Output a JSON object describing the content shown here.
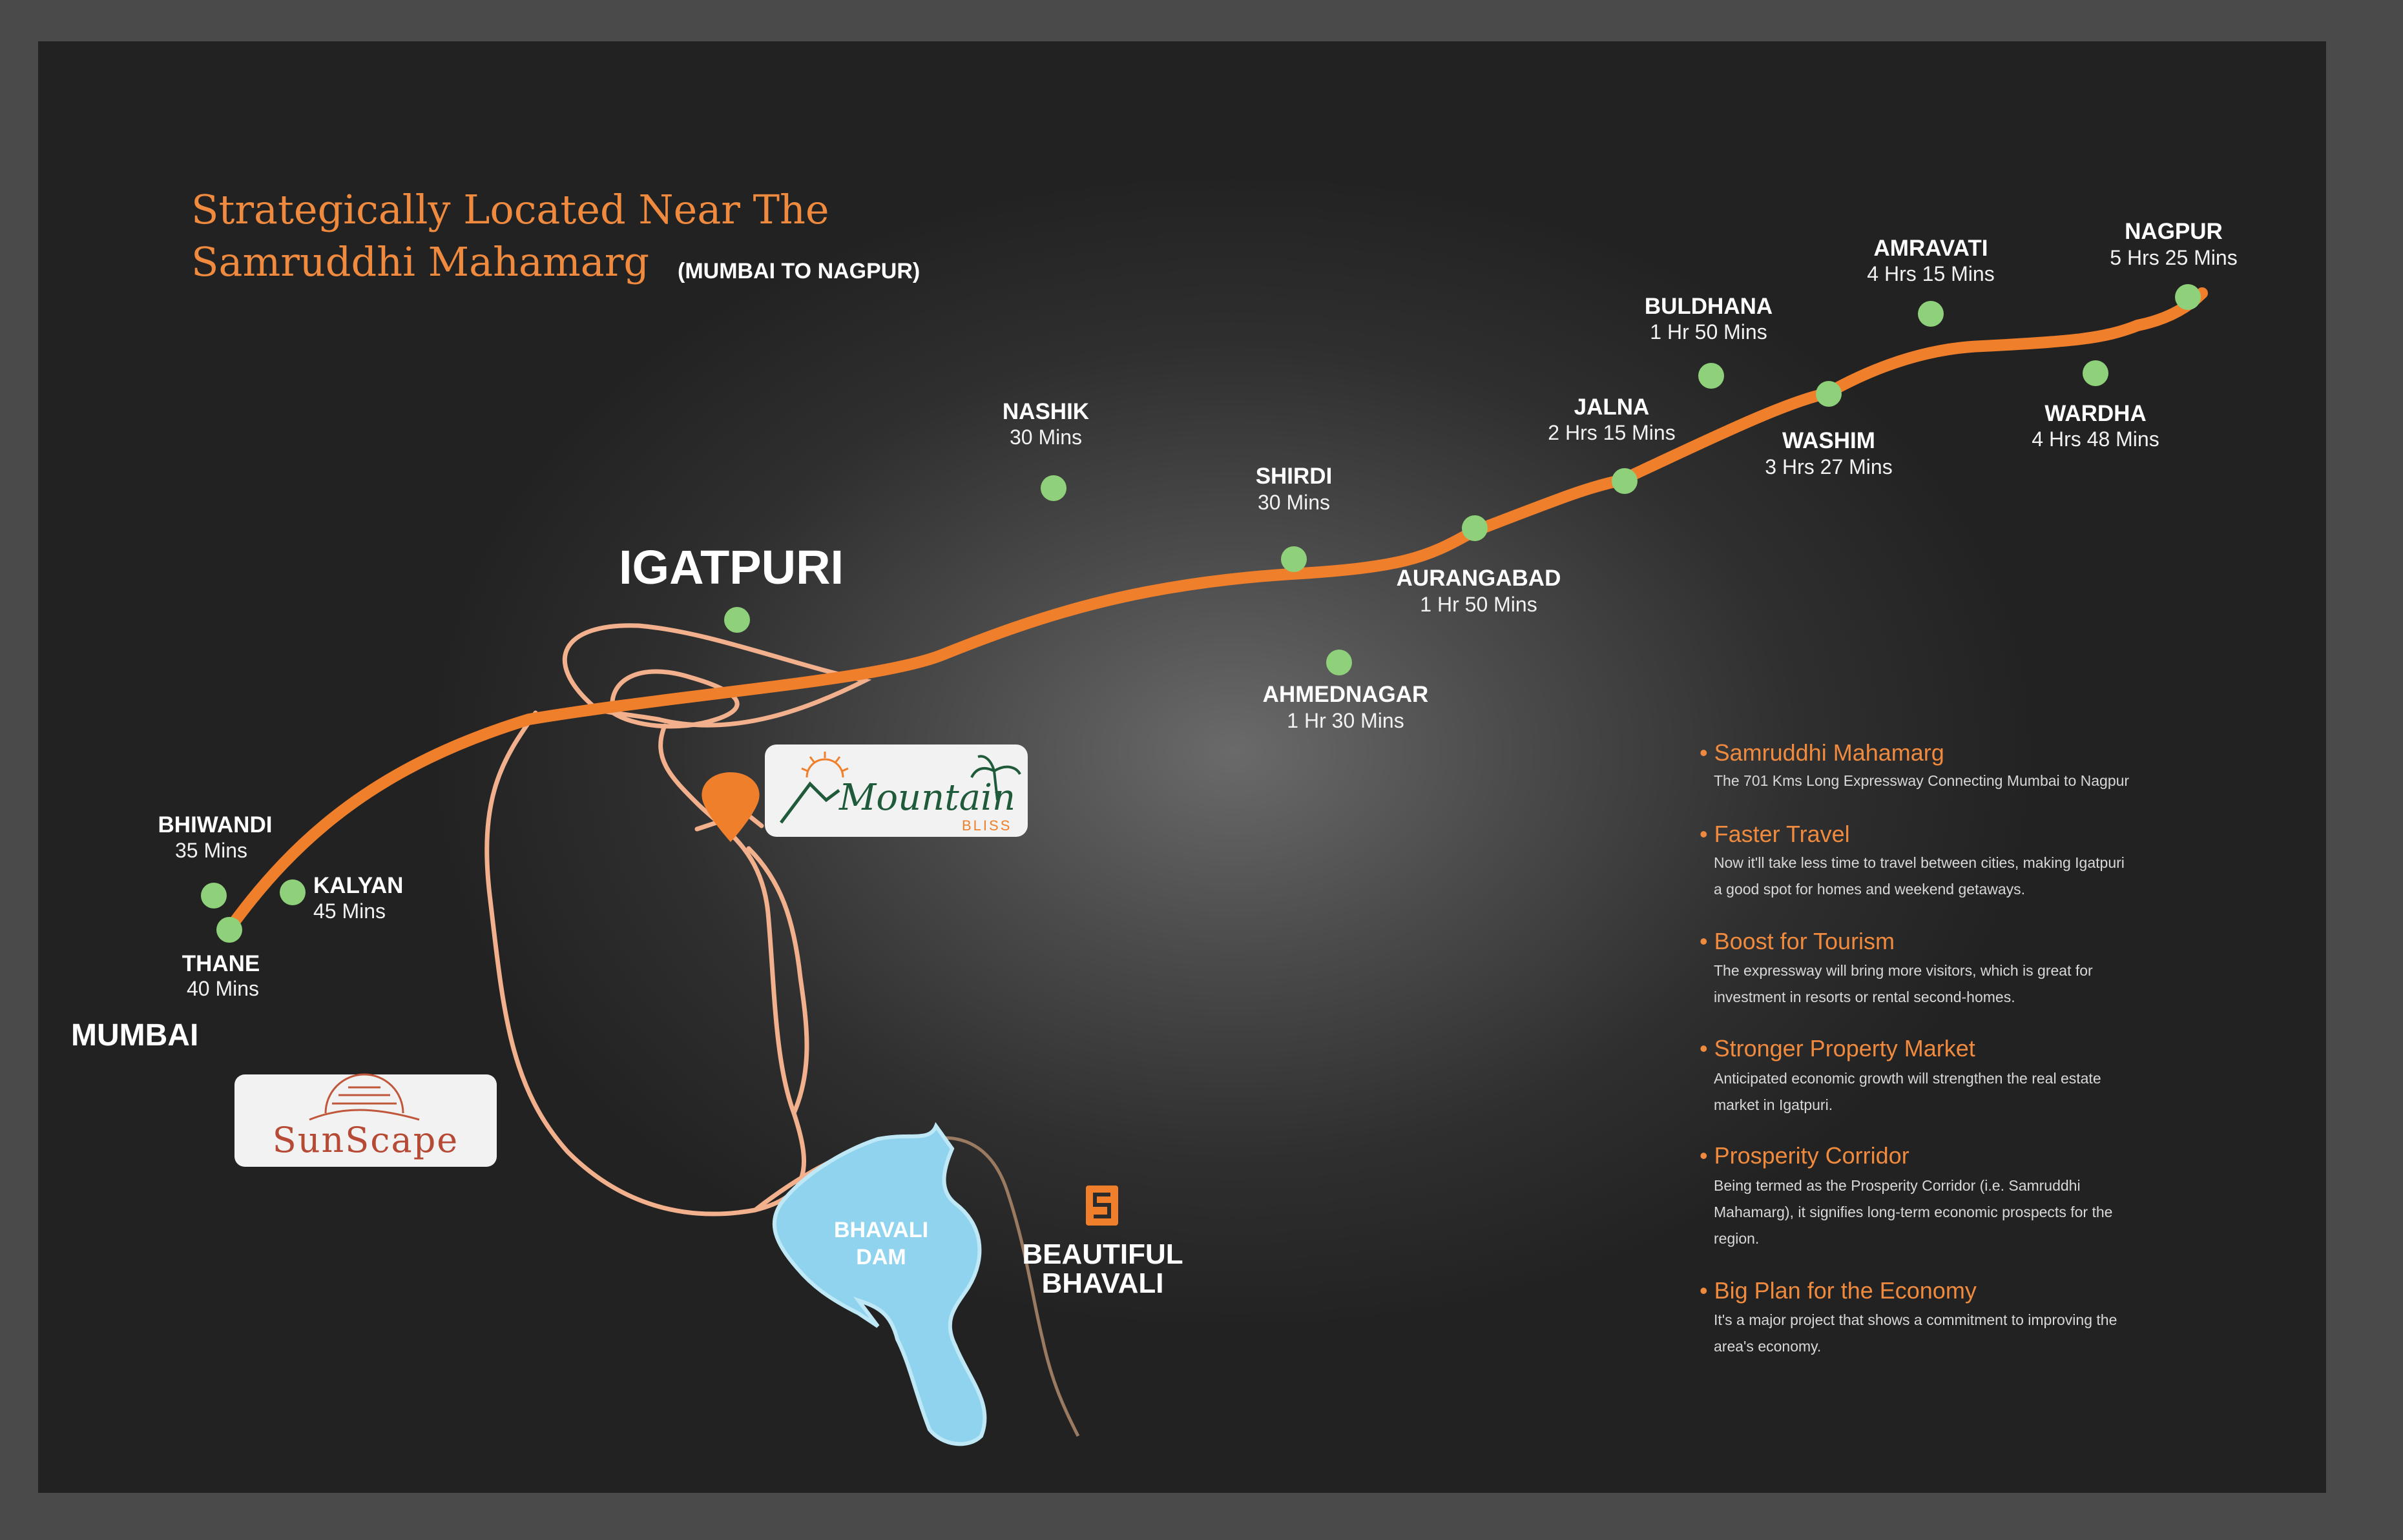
{
  "title": {
    "line1": "Strategically Located Near The",
    "line2": "Samruddhi Mahamarg",
    "route": "(MUMBAI TO NAGPUR)"
  },
  "places": {
    "igatpuri": "IGATPURI",
    "mumbai": "MUMBAI",
    "beautiful_bhavali_1": "BEAUTIFUL",
    "beautiful_bhavali_2": "BHAVALI",
    "bhavali_dam_1": "BHAVALI",
    "bhavali_dam_2": "DAM"
  },
  "cities": {
    "bhiwandi": {
      "name": "BHIWANDI",
      "time": "35 Mins"
    },
    "kalyan": {
      "name": "KALYAN",
      "time": "45 Mins"
    },
    "thane": {
      "name": "THANE",
      "time": "40 Mins"
    },
    "nashik": {
      "name": "NASHIK",
      "time": "30 Mins"
    },
    "shirdi": {
      "name": "SHIRDI",
      "time": "30 Mins"
    },
    "ahmednagar": {
      "name": "AHMEDNAGAR",
      "time": "1 Hr 30 Mins"
    },
    "aurangabad": {
      "name": "AURANGABAD",
      "time": "1 Hr 50 Mins"
    },
    "jalna": {
      "name": "JALNA",
      "time": "2 Hrs 15 Mins"
    },
    "buldhana": {
      "name": "BULDHANA",
      "time": "1 Hr 50 Mins"
    },
    "washim": {
      "name": "WASHIM",
      "time": "3 Hrs 27 Mins"
    },
    "amravati": {
      "name": "AMRAVATI",
      "time": "4 Hrs 15 Mins"
    },
    "wardha": {
      "name": "WARDHA",
      "time": "4 Hrs 48 Mins"
    },
    "nagpur": {
      "name": "NAGPUR",
      "time": "5 Hrs 25 Mins"
    }
  },
  "logos": {
    "mountain_bliss": {
      "word": "Mountain",
      "sub": "BLISS"
    },
    "sunscape": {
      "word": "SunScape"
    }
  },
  "points": [
    {
      "heading": "• Samruddhi Mahamarg",
      "lines": [
        "The 701 Kms Long Expressway Connecting Mumbai to Nagpur"
      ]
    },
    {
      "heading": "• Faster Travel",
      "lines": [
        "Now it'll take less time to travel between cities, making Igatpuri",
        "a good spot for homes and weekend getaways."
      ]
    },
    {
      "heading": "• Boost for Tourism",
      "lines": [
        "The expressway will bring more visitors, which is great for",
        "investment in resorts or rental second-homes."
      ]
    },
    {
      "heading": "• Stronger Property Market",
      "lines": [
        "Anticipated economic growth will strengthen the real estate",
        "market in Igatpuri."
      ]
    },
    {
      "heading": "• Prosperity Corridor",
      "lines": [
        "Being termed as the Prosperity Corridor (i.e. Samruddhi",
        "Mahamarg), it signifies long-term economic prospects for the",
        "region."
      ]
    },
    {
      "heading": "• Big Plan for the Economy",
      "lines": [
        "It's a major project that shows a commitment to improving the",
        "area's economy."
      ]
    }
  ],
  "colors": {
    "accent": "#f08a3e",
    "dot": "#8fd17a",
    "water": "#8fd3ef",
    "road": "#f39a8e"
  }
}
